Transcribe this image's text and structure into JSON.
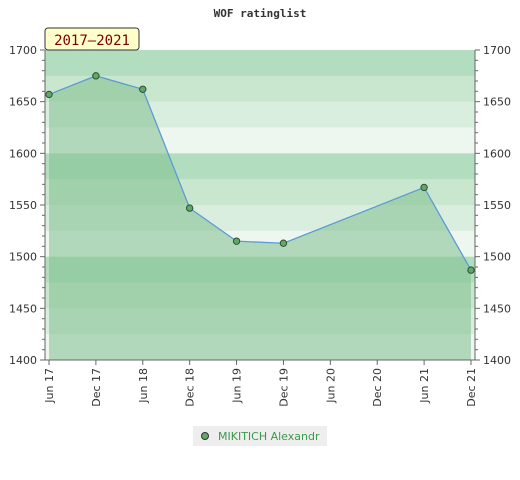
{
  "chart_data": {
    "type": "area",
    "title": "WOF ratinglist",
    "period_label": "2017–2021",
    "ylim": [
      1400,
      1700
    ],
    "y_ticks": [
      1700,
      1650,
      1600,
      1550,
      1500,
      1450,
      1400
    ],
    "x_tick_labels": [
      "Jun 17",
      "Dec 17",
      "Jun 18",
      "Dec 18",
      "Jun 19",
      "Dec 19",
      "Jun 20",
      "Dec 20",
      "Jun 21",
      "Dec 21"
    ],
    "series": [
      {
        "name": "MIKITICH Alexandr",
        "x": [
          "Jun 17",
          "Dec 17",
          "Jun 18",
          "Dec 18",
          "Jun 19",
          "Dec 19",
          "Jun 21",
          "Dec 21"
        ],
        "values": [
          1657,
          1675,
          1662,
          1547,
          1515,
          1513,
          1567,
          1487
        ]
      }
    ],
    "grid": false,
    "legend_position": "bottom",
    "colors": {
      "line": "#5b9bd5",
      "marker": "#5fa86a",
      "area": "#7fc08e",
      "band_dark": "#a9d8b4",
      "band_light": "#eef7ef",
      "period_box": "#ffffcc"
    }
  }
}
